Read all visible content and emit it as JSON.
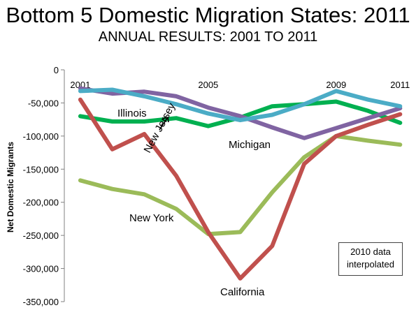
{
  "title": "Bottom 5 Domestic Migration States: 2011",
  "subtitle": "ANNUAL RESULTS: 2001 TO 2011",
  "note": [
    "2010 data",
    "interpolated"
  ],
  "colors": {
    "California": "#c0504d",
    "New York": "#9bbb59",
    "Illinois": "#00b050",
    "Michigan": "#8064a2",
    "New Jersey": "#4bacc6"
  },
  "chart_data": {
    "type": "line",
    "x": [
      2001,
      2002,
      2003,
      2004,
      2005,
      2006,
      2007,
      2008,
      2009,
      2010,
      2011
    ],
    "x_tick_labels": [
      {
        "x": 2001,
        "label": "2001"
      },
      {
        "x": 2005,
        "label": "2005"
      },
      {
        "x": 2009,
        "label": "2009"
      },
      {
        "x": 2011,
        "label": "2011"
      }
    ],
    "ylabel": "Net Domestic Migrants",
    "ylim": [
      -350000,
      0
    ],
    "yticks": [
      0,
      -50000,
      -100000,
      -150000,
      -200000,
      -250000,
      -300000,
      -350000
    ],
    "ytick_labels": [
      "0",
      "-50,000",
      "-100,000",
      "-150,000",
      "-200,000",
      "-250,000",
      "-300,000",
      "-350,000"
    ],
    "grid": false,
    "series": [
      {
        "name": "New York",
        "values": [
          -167000,
          -180000,
          -188000,
          -210000,
          -248000,
          -245000,
          -185000,
          -132000,
          -100000,
          -107000,
          -113000
        ]
      },
      {
        "name": "Illinois",
        "values": [
          -70000,
          -78000,
          -78000,
          -73000,
          -85000,
          -72000,
          -55000,
          -52000,
          -48000,
          -62000,
          -80000
        ]
      },
      {
        "name": "Michigan",
        "values": [
          -28000,
          -36000,
          -33000,
          -40000,
          -57000,
          -70000,
          -87000,
          -103000,
          -88000,
          -73000,
          -58000
        ]
      },
      {
        "name": "New Jersey",
        "values": [
          -32000,
          -30000,
          -40000,
          -52000,
          -66000,
          -76000,
          -68000,
          -52000,
          -32000,
          -45000,
          -55000
        ]
      },
      {
        "name": "California",
        "values": [
          -45000,
          -120000,
          -97000,
          -160000,
          -245000,
          -315000,
          -266000,
          -142000,
          -100000,
          -83000,
          -67000
        ]
      }
    ],
    "annotations": [
      {
        "text": "Illinois",
        "series": "Illinois"
      },
      {
        "text": "New Jersey",
        "series": "New Jersey"
      },
      {
        "text": "Michigan",
        "series": "Michigan"
      },
      {
        "text": "New York",
        "series": "New York"
      },
      {
        "text": "California",
        "series": "California"
      }
    ]
  }
}
